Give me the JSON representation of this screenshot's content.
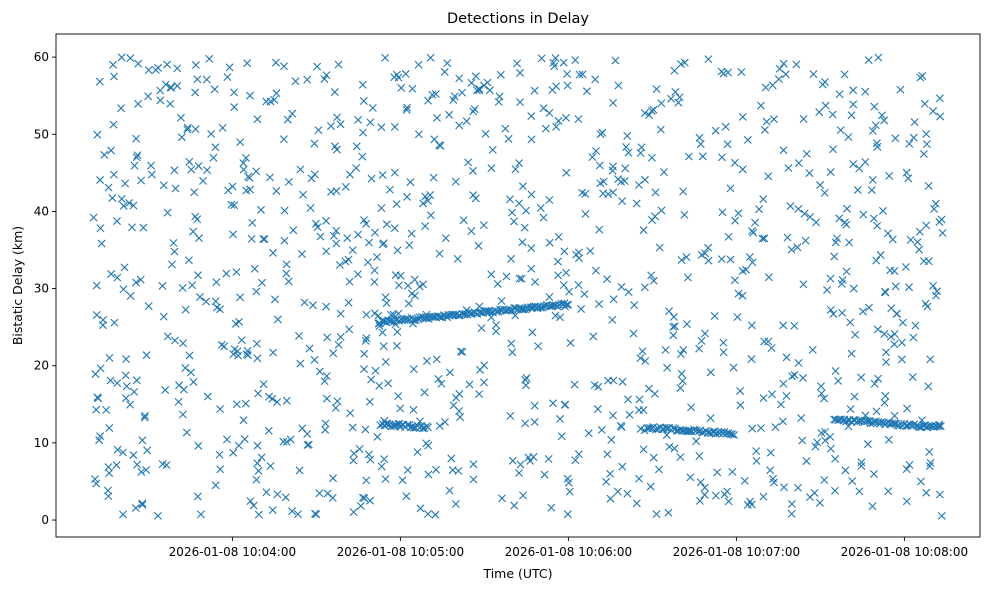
{
  "chart_data": {
    "type": "scatter",
    "title": "Detections in Delay",
    "xlabel": "Time (UTC)",
    "ylabel": "Bistatic Delay (km)",
    "x_unit": "seconds",
    "x_range_time": [
      "2026-01-08 10:03:10",
      "2026-01-08 10:08:14"
    ],
    "xlim_time": [
      "2026-01-08 10:02:57",
      "2026-01-08 10:08:27"
    ],
    "ylim": [
      -2.2,
      63.0
    ],
    "x_ticks": [
      {
        "time": "2026-01-08 10:04:00",
        "label": "2026-01-08 10:04:00"
      },
      {
        "time": "2026-01-08 10:05:00",
        "label": "2026-01-08 10:05:00"
      },
      {
        "time": "2026-01-08 10:06:00",
        "label": "2026-01-08 10:06:00"
      },
      {
        "time": "2026-01-08 10:07:00",
        "label": "2026-01-08 10:07:00"
      },
      {
        "time": "2026-01-08 10:08:00",
        "label": "2026-01-08 10:08:00"
      }
    ],
    "y_ticks": [
      0,
      10,
      20,
      30,
      40,
      50,
      60
    ],
    "grid": false,
    "marker": "x",
    "color": "#1f77b4",
    "tracks": [
      {
        "t_start": "2026-01-08 10:04:52",
        "t_end": "2026-01-08 10:06:00",
        "delay_start": 25.6,
        "delay_end": 28.0
      },
      {
        "t_start": "2026-01-08 10:04:53",
        "t_end": "2026-01-08 10:05:10",
        "delay_start": 12.4,
        "delay_end": 12.0
      },
      {
        "t_start": "2026-01-08 10:06:28",
        "t_end": "2026-01-08 10:06:59",
        "delay_start": 12.0,
        "delay_end": 11.2
      },
      {
        "t_start": "2026-01-08 10:07:35",
        "t_end": "2026-01-08 10:08:13",
        "delay_start": 13.0,
        "delay_end": 12.0
      }
    ],
    "clutter": {
      "t_start": "2026-01-08 10:03:10",
      "t_end": "2026-01-08 10:08:14",
      "delay_min": 0.5,
      "delay_max": 60.0,
      "count": 1100
    }
  }
}
